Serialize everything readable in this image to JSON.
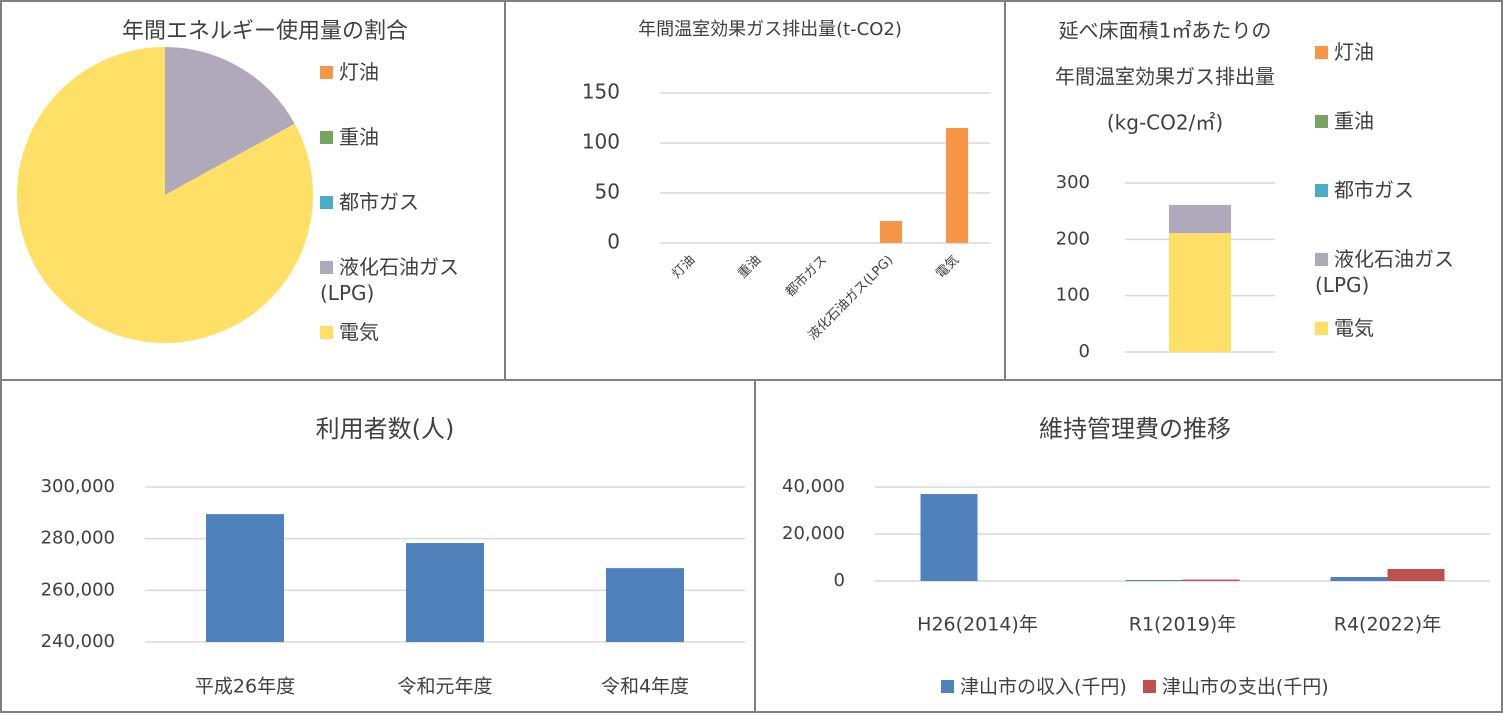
{
  "chart_data": [
    {
      "type": "pie",
      "title": "年間エネルギー使用量の割合",
      "categories": [
        "灯油",
        "重油",
        "都市ガス",
        "液化石油ガス(LPG)",
        "電気"
      ],
      "values": [
        0,
        0,
        0,
        17,
        83
      ],
      "colors": [
        "#f79646",
        "#77a55f",
        "#4bacc6",
        "#b0a8bb",
        "#ffe066"
      ],
      "legend": "right"
    },
    {
      "type": "bar",
      "title": "年間温室効果ガス排出量(t-CO2)",
      "categories": [
        "灯油",
        "重油",
        "都市ガス",
        "液化石油ガス(LPG)",
        "電気"
      ],
      "values": [
        0,
        0,
        0,
        22,
        115
      ],
      "color": "#f79646",
      "ylim": [
        0,
        150
      ],
      "yticks": [
        0,
        50,
        100,
        150
      ],
      "grid": true
    },
    {
      "type": "stacked_bar",
      "title": [
        "延べ床面積1㎡あたりの",
        "年間温室効果ガス排出量",
        "(kg-CO2/㎡)"
      ],
      "categories": [
        null
      ],
      "series": [
        {
          "name": "灯油",
          "color": "#f79646",
          "values": [
            0
          ]
        },
        {
          "name": "重油",
          "color": "#77a55f",
          "values": [
            0
          ]
        },
        {
          "name": "都市ガス",
          "color": "#4bacc6",
          "values": [
            0
          ]
        },
        {
          "name": "液化石油ガス(LPG)",
          "color": "#b0a8bb",
          "values": [
            50
          ]
        },
        {
          "name": "電気",
          "color": "#ffe066",
          "values": [
            211
          ]
        }
      ],
      "ylim": [
        0,
        300
      ],
      "yticks": [
        0,
        100,
        200,
        300
      ],
      "grid": true,
      "legend": "right"
    },
    {
      "type": "bar",
      "title": "利用者数(人)",
      "categories": [
        "平成26年度",
        "令和元年度",
        "令和4年度"
      ],
      "values": [
        289500,
        278300,
        268600
      ],
      "color": "#4f81bd",
      "ylim": [
        240000,
        300000
      ],
      "yticks": [
        {
          "value": 240000,
          "label": "240,000"
        },
        {
          "value": 260000,
          "label": "260,000"
        },
        {
          "value": 280000,
          "label": "280,000"
        },
        {
          "value": 300000,
          "label": "300,000"
        }
      ],
      "grid": true
    },
    {
      "type": "bar",
      "title": "維持管理費の推移",
      "categories": [
        "H26(2014)年",
        "R1(2019)年",
        "R4(2022)年"
      ],
      "series": [
        {
          "name": "津山市の収入(千円)",
          "color": "#4f81bd",
          "values": [
            37000,
            400,
            1700
          ]
        },
        {
          "name": "津山市の支出(千円)",
          "color": "#c0504d",
          "values": [
            0,
            600,
            5100
          ]
        }
      ],
      "ylim": [
        0,
        40000
      ],
      "yticks": [
        0,
        {
          "value": 20000,
          "label": "20,000"
        },
        {
          "value": 40000,
          "label": "40,000"
        }
      ],
      "grid": true,
      "legend": "bottom"
    }
  ]
}
